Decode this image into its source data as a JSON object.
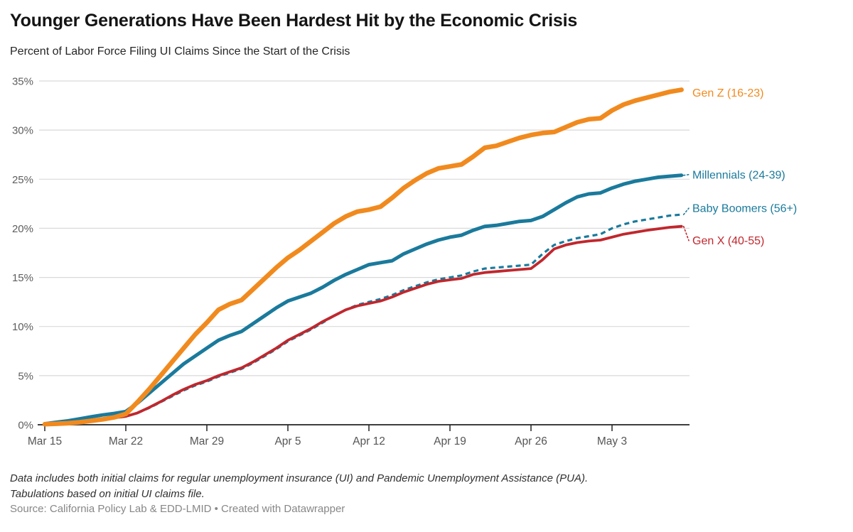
{
  "header": {
    "title": "Younger Generations Have Been Hardest Hit by the Economic Crisis",
    "subtitle": "Percent of Labor Force Filing UI Claims Since the Start of the Crisis"
  },
  "chart_data": {
    "type": "line",
    "title": "Younger Generations Have Been Hardest Hit by the Economic Crisis",
    "subtitle": "Percent of Labor Force Filing UI Claims Since the Start of the Crisis",
    "xlabel": "",
    "ylabel": "Percent of labor force filing UI claims",
    "grid": "horizontal",
    "legend_position": "right-annotations",
    "ylim": [
      0,
      35
    ],
    "x_axis": {
      "unit": "day",
      "n_points": 56,
      "tick_days": [
        0,
        7,
        14,
        21,
        28,
        35,
        42,
        49
      ],
      "tick_labels": [
        "Mar 15",
        "Mar 22",
        "Mar 29",
        "Apr 5",
        "Apr 12",
        "Apr 19",
        "Apr 26",
        "May 3"
      ]
    },
    "y_axis": {
      "ticks": [
        0,
        5,
        10,
        15,
        20,
        25,
        30,
        35
      ],
      "tick_labels": [
        "0%",
        "5%",
        "10%",
        "15%",
        "20%",
        "25%",
        "30%",
        "35%"
      ],
      "suffix": "%"
    },
    "series": [
      {
        "id": "gen-z",
        "name": "Gen Z (16-23)",
        "color": "#F18A1E",
        "style": "solid",
        "values": [
          0.05,
          0.1,
          0.15,
          0.25,
          0.4,
          0.55,
          0.75,
          1.1,
          2.3,
          3.6,
          5,
          6.4,
          7.8,
          9.2,
          10.4,
          11.7,
          12.3,
          12.7,
          13.8,
          14.9,
          16,
          17,
          17.8,
          18.7,
          19.6,
          20.5,
          21.2,
          21.7,
          21.9,
          22.2,
          23.1,
          24.1,
          24.9,
          25.6,
          26.1,
          26.3,
          26.5,
          27.3,
          28.2,
          28.4,
          28.8,
          29.2,
          29.5,
          29.7,
          29.8,
          30.3,
          30.8,
          31.1,
          31.2,
          32,
          32.6,
          33,
          33.3,
          33.6,
          33.9,
          34.1
        ]
      },
      {
        "id": "millennials",
        "name": "Millennials (24-39)",
        "color": "#1A7A9C",
        "style": "solid",
        "values": [
          0.1,
          0.25,
          0.4,
          0.6,
          0.8,
          1,
          1.15,
          1.35,
          2.2,
          3.2,
          4.2,
          5.2,
          6.2,
          7,
          7.8,
          8.6,
          9.1,
          9.5,
          10.3,
          11.1,
          11.9,
          12.6,
          13,
          13.4,
          14,
          14.7,
          15.3,
          15.8,
          16.3,
          16.5,
          16.7,
          17.4,
          17.9,
          18.4,
          18.8,
          19.1,
          19.3,
          19.8,
          20.2,
          20.3,
          20.5,
          20.7,
          20.8,
          21.2,
          21.9,
          22.6,
          23.2,
          23.5,
          23.6,
          24.1,
          24.5,
          24.8,
          25,
          25.2,
          25.3,
          25.4
        ]
      },
      {
        "id": "baby-boomers",
        "name": "Baby Boomers (56+)",
        "color": "#1A7A9C",
        "style": "dashed",
        "values": [
          0.05,
          0.1,
          0.2,
          0.3,
          0.45,
          0.6,
          0.7,
          0.85,
          1.2,
          1.7,
          2.3,
          2.9,
          3.5,
          4,
          4.4,
          4.9,
          5.3,
          5.7,
          6.3,
          7,
          7.7,
          8.5,
          9.1,
          9.7,
          10.4,
          11.1,
          11.7,
          12.2,
          12.5,
          12.8,
          13.2,
          13.7,
          14.1,
          14.5,
          14.8,
          15,
          15.2,
          15.6,
          15.9,
          16,
          16.1,
          16.2,
          16.3,
          17.4,
          18.3,
          18.7,
          19,
          19.2,
          19.4,
          20,
          20.4,
          20.7,
          20.9,
          21.1,
          21.3,
          21.4
        ]
      },
      {
        "id": "gen-x",
        "name": "Gen X (40-55)",
        "color": "#C0272D",
        "style": "solid",
        "values": [
          0.05,
          0.1,
          0.2,
          0.3,
          0.45,
          0.6,
          0.7,
          0.85,
          1.2,
          1.75,
          2.35,
          3,
          3.6,
          4.1,
          4.5,
          5,
          5.4,
          5.8,
          6.4,
          7.1,
          7.8,
          8.6,
          9.2,
          9.8,
          10.5,
          11.1,
          11.7,
          12.1,
          12.35,
          12.6,
          13,
          13.5,
          13.9,
          14.3,
          14.6,
          14.75,
          14.9,
          15.3,
          15.5,
          15.6,
          15.7,
          15.8,
          15.9,
          16.8,
          17.9,
          18.3,
          18.55,
          18.7,
          18.8,
          19.1,
          19.4,
          19.6,
          19.8,
          19.95,
          20.1,
          20.2
        ]
      }
    ]
  },
  "footer": {
    "note_line1": "Data includes both initial claims for regular unemployment insurance (UI) and Pandemic Unemployment Assistance (PUA).",
    "note_line2": "Tabulations based on initial UI claims file.",
    "source": "Source: California Policy Lab & EDD-LMID • Created with Datawrapper"
  },
  "colors": {
    "gen_z": "#F18A1E",
    "millennials": "#1A7A9C",
    "baby_boomers": "#1A7A9C",
    "gen_x": "#C0272D",
    "gridline": "#D9D9D9",
    "axis": "#222222"
  }
}
